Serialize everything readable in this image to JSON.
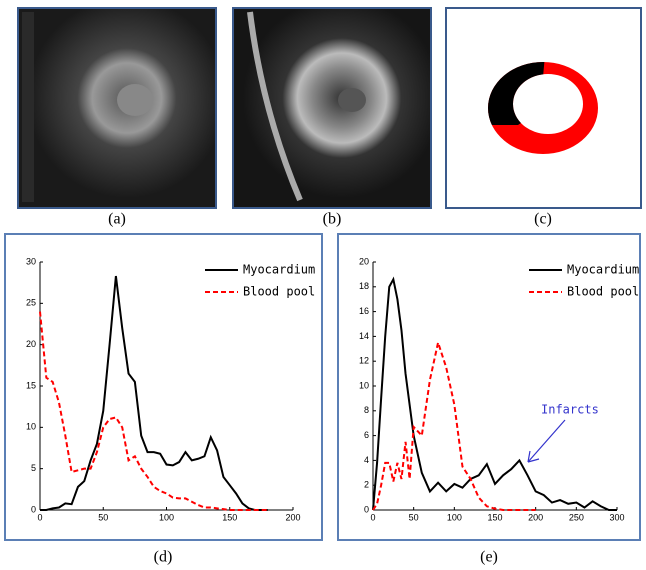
{
  "figure": {
    "panels": [
      {
        "caption": "(a)"
      },
      {
        "caption": "(b)"
      },
      {
        "caption": "(c)"
      }
    ]
  },
  "chart_data": [
    {
      "type": "line",
      "caption": "(d)",
      "x": [
        0,
        5,
        10,
        15,
        20,
        25,
        30,
        35,
        40,
        45,
        50,
        55,
        60,
        65,
        70,
        75,
        80,
        85,
        90,
        95,
        100,
        105,
        110,
        115,
        120,
        125,
        130,
        135,
        140,
        145,
        150,
        155,
        160,
        165,
        170,
        175,
        180
      ],
      "series": [
        {
          "name": "Myocardium",
          "color": "#000000",
          "linestyle": "solid",
          "values": [
            0,
            0,
            0.2,
            0.3,
            0.8,
            0.7,
            2.8,
            3.5,
            6,
            8,
            12,
            20,
            28.3,
            22,
            16.5,
            15.5,
            9,
            7,
            7,
            6.8,
            5.5,
            5.4,
            5.8,
            7,
            6,
            6.2,
            6.5,
            8.8,
            7.2,
            4,
            3,
            2,
            0.8,
            0.2,
            0,
            0,
            0
          ]
        },
        {
          "name": "Blood pool",
          "color": "#ff0000",
          "linestyle": "dashed",
          "values": [
            24,
            16,
            15.5,
            13,
            9,
            4.6,
            4.8,
            5,
            5,
            7,
            10,
            11,
            11.2,
            10,
            6,
            6.5,
            5,
            4,
            2.8,
            2.3,
            2,
            1.5,
            1.4,
            1.4,
            1,
            0.6,
            0.3,
            0.3,
            0.2,
            0.1,
            0,
            0,
            0,
            0,
            0,
            0,
            0
          ]
        }
      ],
      "xlim": [
        0,
        200
      ],
      "xticks": [
        0,
        50,
        100,
        150,
        200
      ],
      "ylim": [
        0,
        30
      ],
      "yticks": [
        0,
        5,
        10,
        15,
        20,
        25,
        30
      ],
      "legend": "upper right"
    },
    {
      "type": "line",
      "caption": "(e)",
      "x": [
        0,
        5,
        10,
        15,
        20,
        25,
        30,
        35,
        40,
        45,
        50,
        60,
        70,
        80,
        90,
        100,
        110,
        120,
        130,
        140,
        150,
        160,
        170,
        180,
        190,
        200,
        210,
        220,
        230,
        240,
        250,
        260,
        270,
        280,
        290,
        300
      ],
      "series": [
        {
          "name": "Myocardium",
          "color": "#000000",
          "linestyle": "solid",
          "values": [
            0,
            3.8,
            9,
            14,
            18,
            18.6,
            17,
            14.5,
            11,
            8.5,
            6,
            3,
            1.5,
            2.2,
            1.5,
            2.1,
            1.8,
            2.5,
            2.8,
            3.7,
            2.1,
            2.8,
            3.3,
            4,
            2.8,
            1.5,
            1.2,
            0.6,
            0.8,
            0.5,
            0.6,
            0.2,
            0.7,
            0.3,
            0,
            0
          ]
        },
        {
          "name": "Blood pool",
          "color": "#ff0000",
          "linestyle": "dashed",
          "values": [
            0,
            0.5,
            2,
            3.8,
            3.8,
            2.3,
            3.8,
            2.5,
            5.5,
            2.5,
            6.7,
            6,
            10.5,
            13.5,
            11.5,
            8.5,
            3.5,
            2.5,
            1,
            0.3,
            0.1,
            0,
            0,
            0,
            0,
            0,
            null,
            null,
            null,
            null,
            null,
            null,
            null,
            null,
            null,
            null
          ]
        }
      ],
      "xlim": [
        0,
        300
      ],
      "xticks": [
        0,
        50,
        100,
        150,
        200,
        250,
        300
      ],
      "ylim": [
        0,
        20
      ],
      "yticks": [
        0,
        2,
        4,
        6,
        8,
        10,
        12,
        14,
        16,
        18,
        20
      ],
      "legend": "upper right",
      "annotations": [
        {
          "text": "Infarcts",
          "color": "#3333cc"
        }
      ]
    }
  ]
}
